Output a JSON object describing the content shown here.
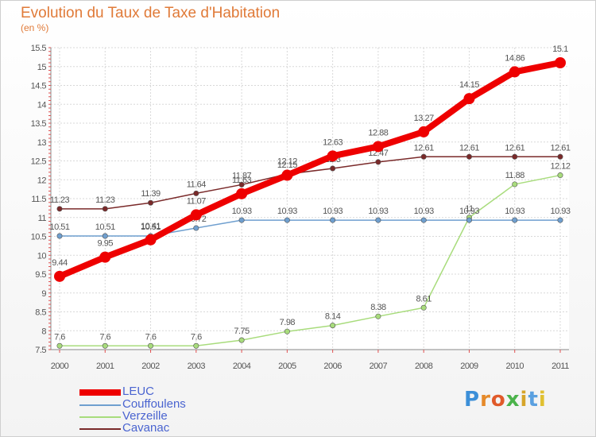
{
  "title": "Evolution du Taux de Taxe d'Habitation",
  "subtitle": "(en %)",
  "logo": "Proxiti",
  "chart_data": {
    "type": "line",
    "x": [
      "2000",
      "2001",
      "2002",
      "2003",
      "2004",
      "2005",
      "2006",
      "2007",
      "2008",
      "2009",
      "2010",
      "2011"
    ],
    "ylim": [
      7.5,
      15.5
    ],
    "yticks": [
      "7.5",
      "8",
      "8.5",
      "9",
      "9.5",
      "10",
      "10.5",
      "11",
      "11.5",
      "12",
      "12.5",
      "13",
      "13.5",
      "14",
      "14.5",
      "15",
      "15.5"
    ],
    "grid": true,
    "legend_position": "bottom-left",
    "series": [
      {
        "name": "Cavanac",
        "color": "#7a2a2a",
        "values": [
          11.23,
          11.23,
          11.39,
          11.64,
          11.87,
          12.15,
          12.3,
          12.47,
          12.61,
          12.61,
          12.61,
          12.61
        ],
        "labels": [
          "11.23",
          "11.23",
          "11.39",
          "11.64",
          "11.87",
          "12.15",
          "12.3",
          "12.47",
          "12.61",
          "12.61",
          "12.61",
          "12.61"
        ]
      },
      {
        "name": "Verzeille",
        "color": "#a8dc7c",
        "values": [
          7.6,
          7.6,
          7.6,
          7.6,
          7.75,
          7.98,
          8.14,
          8.38,
          8.61,
          11.0,
          11.88,
          12.12
        ],
        "labels": [
          "7.6",
          "7.6",
          "7.6",
          "7.6",
          "7.75",
          "7.98",
          "8.14",
          "8.38",
          "8.61",
          "11",
          "11.88",
          "12.12"
        ]
      },
      {
        "name": "Couffoulens",
        "color": "#6f9fcf",
        "values": [
          10.51,
          10.51,
          10.51,
          10.72,
          10.93,
          10.93,
          10.93,
          10.93,
          10.93,
          10.93,
          10.93,
          10.93
        ],
        "labels": [
          "10.51",
          "10.51",
          "10.51",
          "10.72",
          "10.93",
          "10.93",
          "10.93",
          "10.93",
          "10.93",
          "10.93",
          "10.93",
          "10.93"
        ]
      },
      {
        "name": "LEUC",
        "color": "#ee0000",
        "values": [
          9.44,
          9.95,
          10.41,
          11.07,
          11.63,
          12.12,
          12.63,
          12.88,
          13.27,
          14.15,
          14.86,
          15.1
        ],
        "labels": [
          "9.44",
          "9.95",
          "10.41",
          "11.07",
          "11.63",
          "12.12",
          "12.63",
          "12.88",
          "13.27",
          "14.15",
          "14.86",
          "15.1"
        ]
      }
    ]
  },
  "legend": [
    {
      "label": "LEUC",
      "color": "#ee0000"
    },
    {
      "label": "Couffoulens",
      "color": "#6f9fcf"
    },
    {
      "label": "Verzeille",
      "color": "#a8dc7c"
    },
    {
      "label": "Cavanac",
      "color": "#7a2a2a"
    }
  ]
}
